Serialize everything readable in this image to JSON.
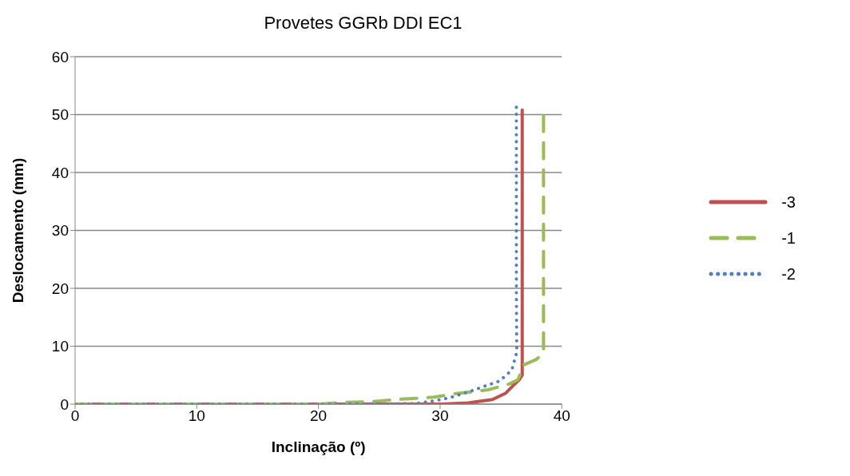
{
  "chart_data": {
    "type": "line",
    "title": "Provetes GGRb DDI EC1",
    "xlabel": "Inclinação (º)",
    "ylabel": "Deslocamento (mm)",
    "xlim": [
      0,
      40
    ],
    "xticks": [
      0,
      10,
      20,
      30,
      40
    ],
    "ylim": [
      0,
      60
    ],
    "yticks": [
      0,
      10,
      20,
      30,
      40,
      50,
      60
    ],
    "grid": "y",
    "legend": "right",
    "marker": "none",
    "series": [
      {
        "name": "-3",
        "color": "#c0504d",
        "line_style": "solid",
        "x": [
          0,
          10,
          20,
          30.1,
          32.3,
          34.3,
          35.4,
          36.0,
          36.5,
          36.75,
          36.75
        ],
        "values": [
          0,
          0,
          0,
          0,
          0.2,
          0.8,
          1.9,
          3.2,
          4.2,
          5.0,
          50.8
        ]
      },
      {
        "name": "-1",
        "color": "#9bbb59",
        "line_style": "dashed",
        "x": [
          0,
          10,
          20,
          22.1,
          24.2,
          26.4,
          28,
          29.5,
          31.2,
          32.5,
          34,
          35.7,
          36.4,
          36.9,
          37.9,
          38.5,
          38.5
        ],
        "values": [
          0,
          0,
          0,
          0.3,
          0.4,
          0.8,
          1.0,
          1.2,
          1.8,
          2.1,
          2.5,
          3.5,
          4.2,
          6.8,
          7.7,
          8.8,
          50
        ]
      },
      {
        "name": "-2",
        "color": "#4f81bd",
        "line_style": "dotted",
        "x": [
          0,
          10,
          20,
          28,
          29.6,
          30.8,
          32.6,
          33.8,
          34.9,
          35.9,
          36.3,
          36.27,
          36.27
        ],
        "values": [
          0,
          0,
          0,
          0.1,
          0.6,
          1.1,
          2.3,
          3.2,
          4.0,
          5.9,
          9,
          20,
          51.4
        ]
      }
    ]
  }
}
